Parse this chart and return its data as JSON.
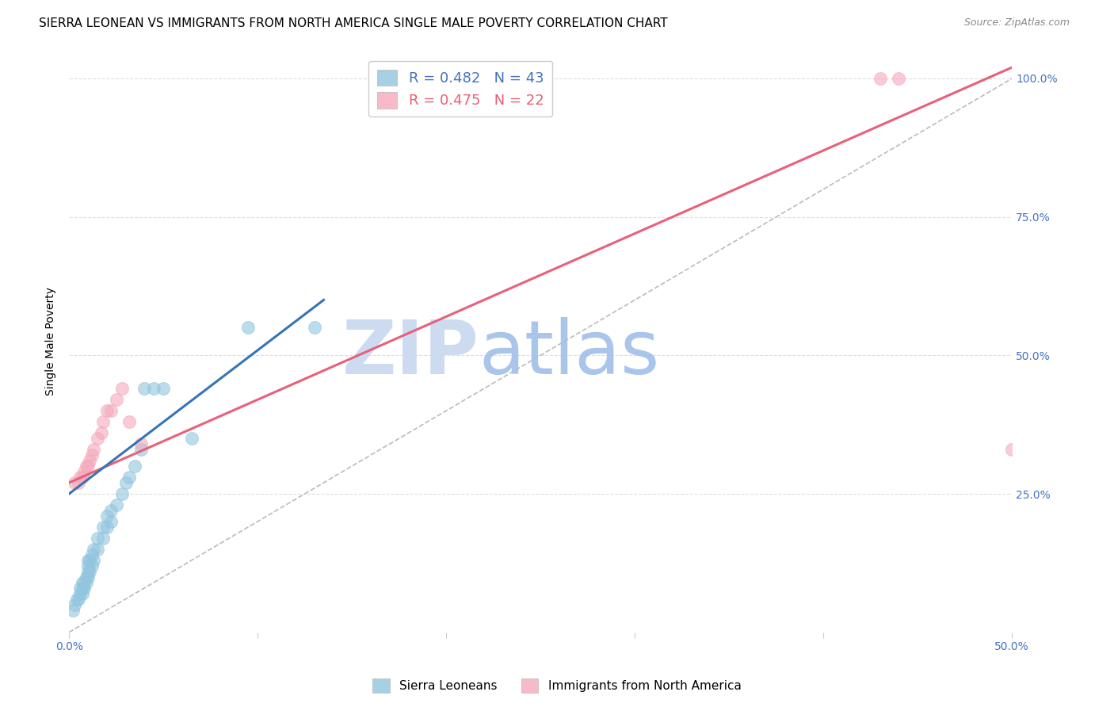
{
  "title": "SIERRA LEONEAN VS IMMIGRANTS FROM NORTH AMERICA SINGLE MALE POVERTY CORRELATION CHART",
  "source": "Source: ZipAtlas.com",
  "ylabel": "Single Male Poverty",
  "xlim": [
    0.0,
    0.5
  ],
  "ylim": [
    0.0,
    1.05
  ],
  "yticks": [
    0.0,
    0.25,
    0.5,
    0.75,
    1.0
  ],
  "ytick_labels": [
    "",
    "25.0%",
    "50.0%",
    "75.0%",
    "100.0%"
  ],
  "xticks": [
    0.0,
    0.1,
    0.2,
    0.3,
    0.4,
    0.5
  ],
  "xtick_labels": [
    "0.0%",
    "",
    "",
    "",
    "",
    "50.0%"
  ],
  "blue_color": "#92c5de",
  "pink_color": "#f4a9bb",
  "legend_R_blue": "R = 0.482",
  "legend_N_blue": "N = 43",
  "legend_R_pink": "R = 0.475",
  "legend_N_pink": "N = 22",
  "watermark_ZIP": "ZIP",
  "watermark_atlas": "atlas",
  "blue_scatter_x": [
    0.002,
    0.003,
    0.004,
    0.005,
    0.006,
    0.006,
    0.007,
    0.007,
    0.007,
    0.008,
    0.008,
    0.009,
    0.009,
    0.01,
    0.01,
    0.01,
    0.01,
    0.011,
    0.011,
    0.012,
    0.012,
    0.013,
    0.013,
    0.015,
    0.015,
    0.018,
    0.018,
    0.02,
    0.02,
    0.022,
    0.022,
    0.025,
    0.028,
    0.03,
    0.032,
    0.035,
    0.038,
    0.04,
    0.045,
    0.05,
    0.065,
    0.095,
    0.13
  ],
  "blue_scatter_y": [
    0.04,
    0.05,
    0.06,
    0.06,
    0.07,
    0.08,
    0.07,
    0.08,
    0.09,
    0.08,
    0.09,
    0.09,
    0.1,
    0.1,
    0.11,
    0.12,
    0.13,
    0.11,
    0.13,
    0.12,
    0.14,
    0.13,
    0.15,
    0.15,
    0.17,
    0.17,
    0.19,
    0.19,
    0.21,
    0.2,
    0.22,
    0.23,
    0.25,
    0.27,
    0.28,
    0.3,
    0.33,
    0.44,
    0.44,
    0.44,
    0.35,
    0.55,
    0.55
  ],
  "pink_scatter_x": [
    0.003,
    0.005,
    0.006,
    0.007,
    0.008,
    0.009,
    0.01,
    0.011,
    0.012,
    0.013,
    0.015,
    0.017,
    0.018,
    0.02,
    0.022,
    0.025,
    0.028,
    0.032,
    0.038,
    0.5,
    0.43,
    0.44
  ],
  "pink_scatter_y": [
    0.27,
    0.27,
    0.28,
    0.28,
    0.29,
    0.3,
    0.3,
    0.31,
    0.32,
    0.33,
    0.35,
    0.36,
    0.38,
    0.4,
    0.4,
    0.42,
    0.44,
    0.38,
    0.34,
    0.33,
    1.0,
    1.0
  ],
  "blue_line": {
    "x0": 0.0,
    "y0": 0.25,
    "x1": 0.135,
    "y1": 0.6
  },
  "pink_line": {
    "x0": 0.0,
    "y0": 0.27,
    "x1": 0.5,
    "y1": 1.02
  },
  "ref_line": {
    "x0": 0.0,
    "y0": 0.0,
    "x1": 0.5,
    "y1": 1.0
  },
  "background_color": "#ffffff",
  "grid_color": "#dddddd",
  "tick_color": "#4472c4",
  "title_fontsize": 11,
  "axis_label_fontsize": 10,
  "tick_fontsize": 10,
  "watermark_color_ZIP": "#c8d8f0",
  "watermark_color_atlas": "#a0c0e8",
  "watermark_fontsize": 68
}
